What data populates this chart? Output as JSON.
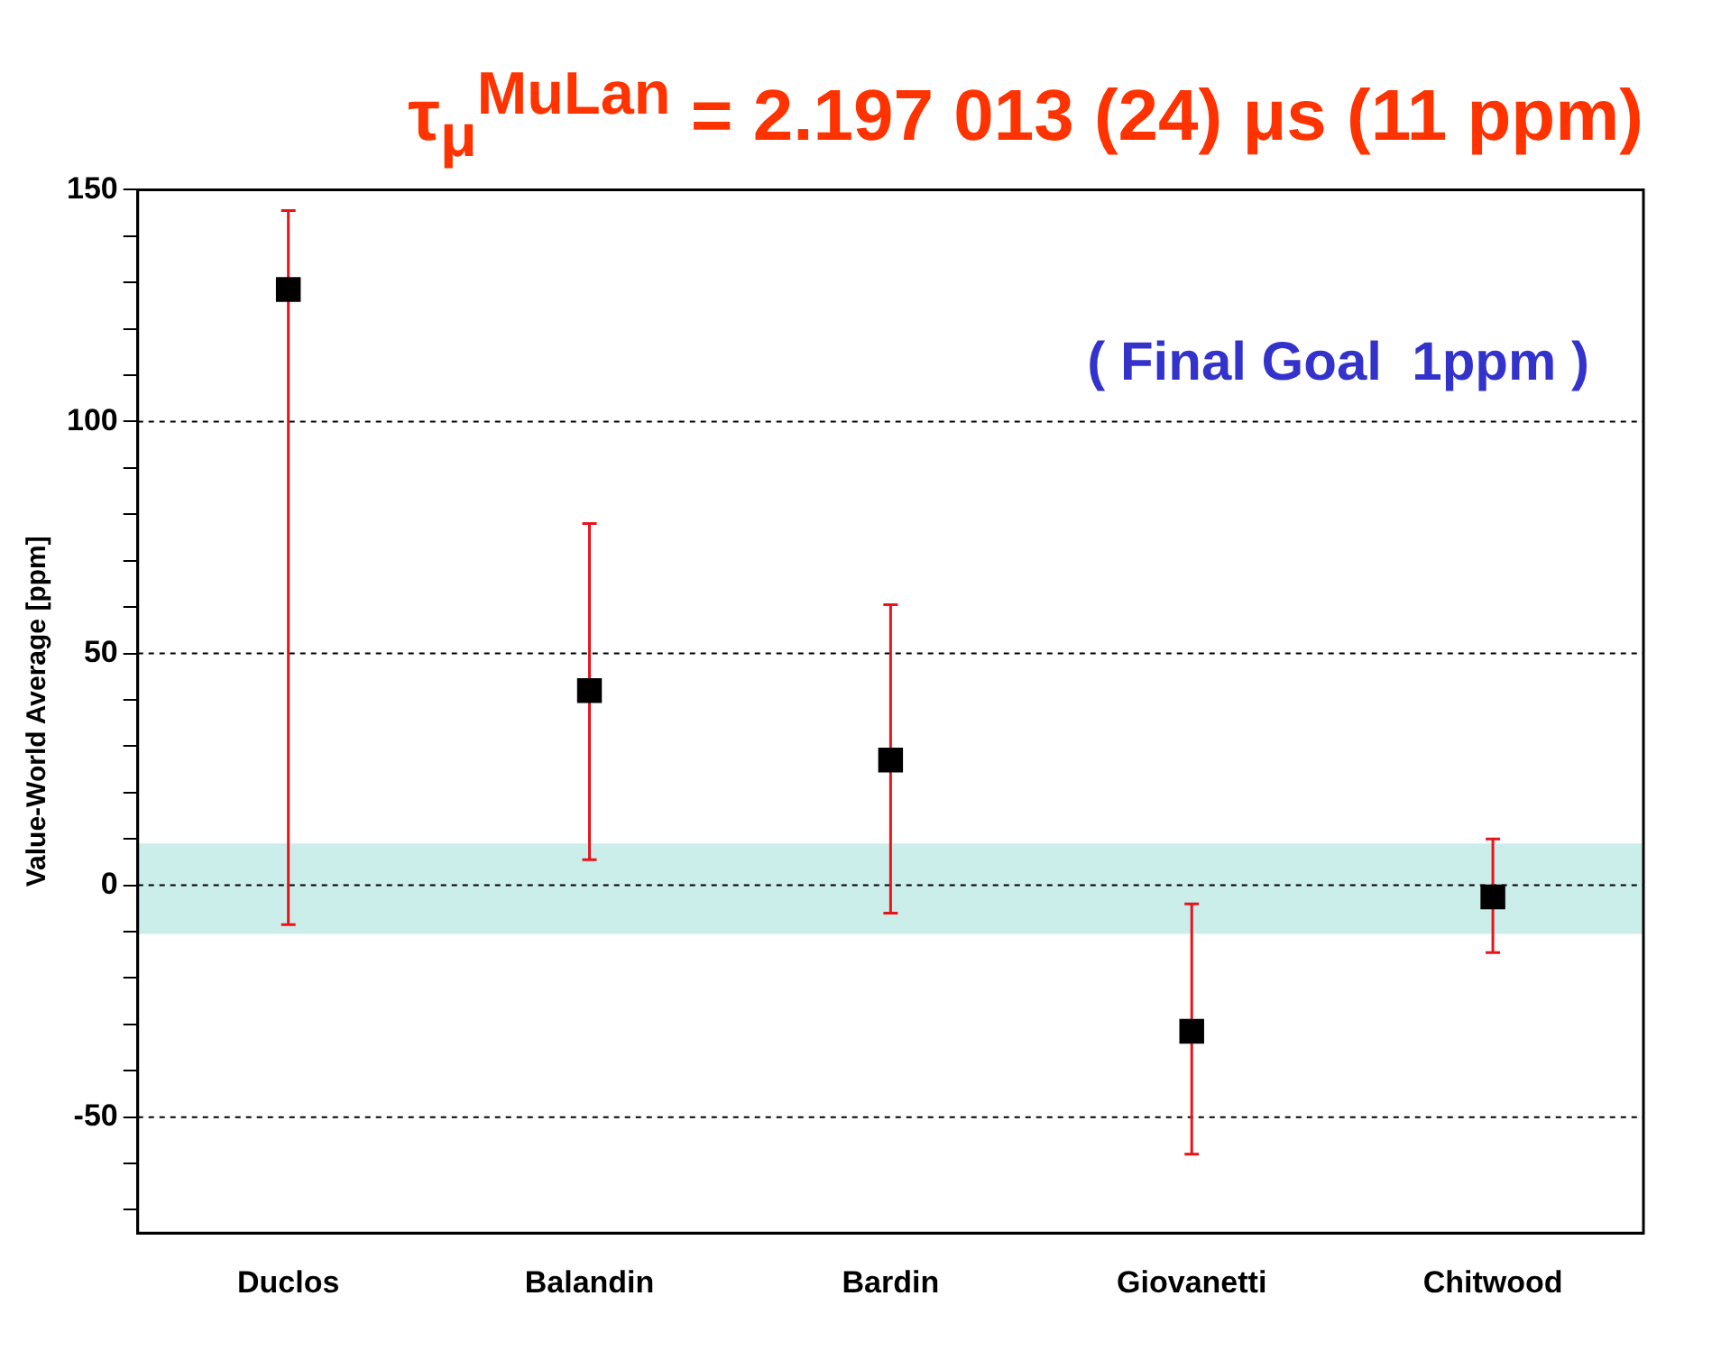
{
  "chart_data": {
    "type": "scatter",
    "title": "τ$_{μ}$$^{MuLan}$ = 2.197 013 (24) μs  (11 ppm)",
    "ylabel": "Value-World Average [ppm]",
    "categories": [
      "Duclos",
      "Balandin",
      "Bardin",
      "Giovanetti",
      "Chitwood"
    ],
    "series": [
      {
        "color": "#000000",
        "values": [
          128.5,
          42,
          27,
          -31.5,
          -2.5
        ],
        "errors": [
          [
            -8.5,
            145.5
          ],
          [
            5.5,
            78
          ],
          [
            -6,
            60.5
          ],
          [
            -58,
            -4
          ],
          [
            -14.5,
            10
          ]
        ]
      }
    ],
    "ylim": [
      -75,
      150
    ],
    "yticks": [
      {
        "value": -70,
        "label": null
      },
      {
        "value": -60,
        "label": null
      },
      -50,
      {
        "value": -40,
        "label": null
      },
      {
        "value": -30,
        "label": null
      },
      {
        "value": -20,
        "label": null
      },
      {
        "value": -10,
        "label": null
      },
      0,
      {
        "value": 10,
        "label": null
      },
      {
        "value": 20,
        "label": null
      },
      {
        "value": 30,
        "label": null
      },
      {
        "value": 40,
        "label": null
      },
      50,
      {
        "value": 60,
        "label": null
      },
      {
        "value": 70,
        "label": null
      },
      {
        "value": 80,
        "label": null
      },
      {
        "value": 90,
        "label": null
      },
      100,
      {
        "value": 110,
        "label": null
      },
      {
        "value": 120,
        "label": null
      },
      {
        "value": 130,
        "label": null
      },
      {
        "value": 140,
        "label": null
      },
      150
    ],
    "bands": [
      {
        "axis": "y",
        "from": -10.5,
        "to": 9,
        "color": "#cbeeea"
      }
    ],
    "annotations": [
      "( Final Goal  1ppm )"
    ],
    "grid": "y",
    "marker": "square",
    "legend": false
  }
}
